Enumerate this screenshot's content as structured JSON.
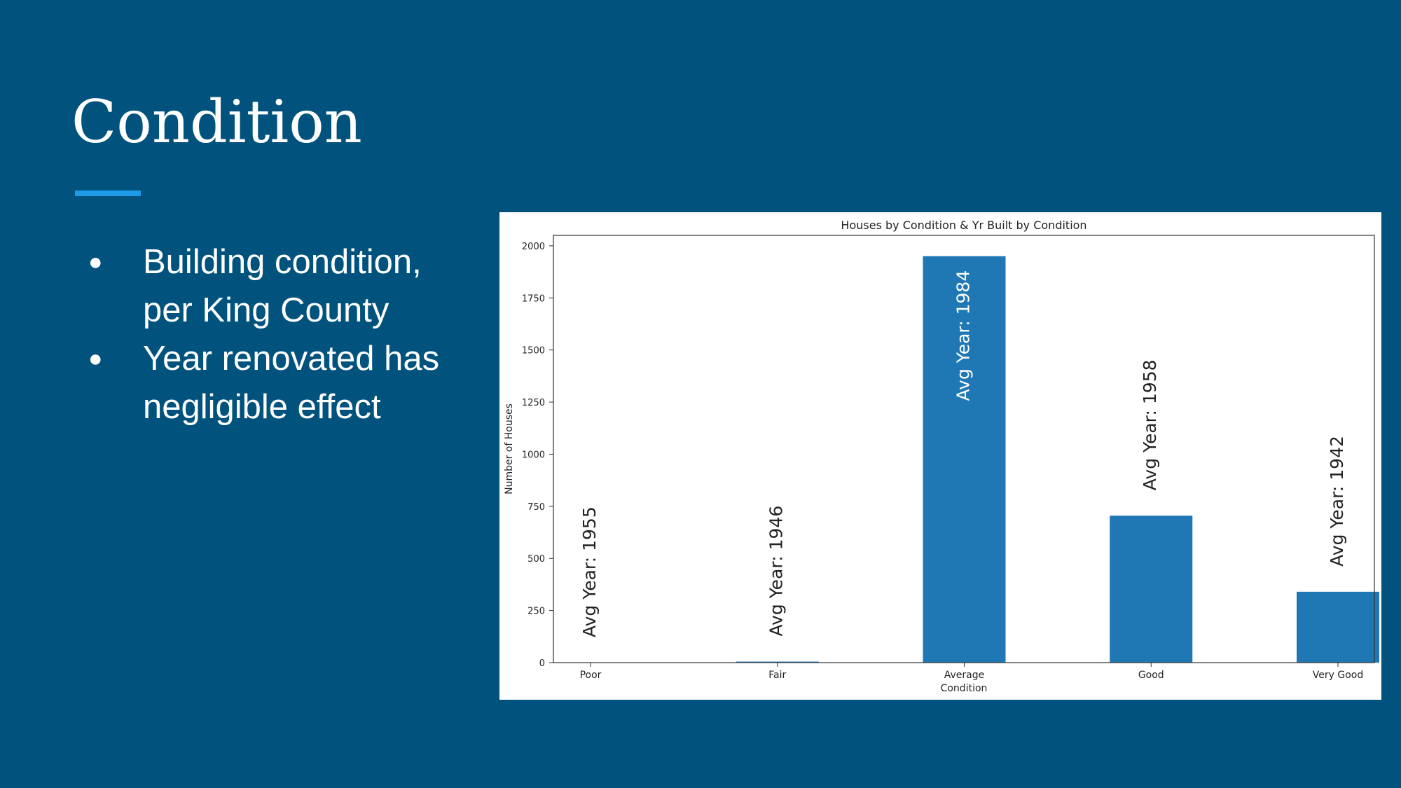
{
  "slide": {
    "title": "Condition",
    "bullets": [
      "Building condition, per King County",
      "Year renovated has negligible effect"
    ],
    "accent_color": "#1f9ae8",
    "background_color": "#01527d"
  },
  "chart_data": {
    "type": "bar",
    "title": "Houses by Condition & Yr Built by Condition",
    "xlabel": "Condition",
    "ylabel": "Number of Houses",
    "categories": [
      "Poor",
      "Fair",
      "Average",
      "Good",
      "Very Good"
    ],
    "values": [
      0,
      5,
      1950,
      705,
      340
    ],
    "annotations": [
      "Avg Year: 1955",
      "Avg Year: 1946",
      "Avg Year: 1984",
      "Avg Year: 1958",
      "Avg Year: 1942"
    ],
    "ylim": [
      0,
      2050
    ],
    "yticks": [
      0,
      250,
      500,
      750,
      1000,
      1250,
      1500,
      1750,
      2000
    ],
    "bar_color": "#1f77b4",
    "grid": false,
    "legend": "none"
  }
}
